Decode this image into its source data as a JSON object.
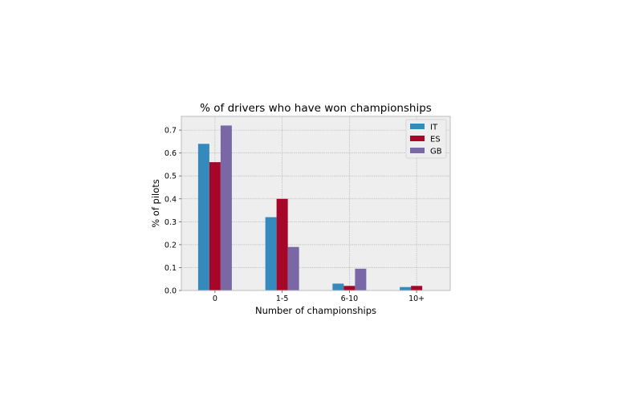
{
  "chart_data": {
    "type": "bar",
    "title": "% of drivers who have won championships",
    "xlabel": "Number of championships",
    "ylabel": "% of pilots",
    "categories": [
      "0",
      "1-5",
      "6-10",
      "10+"
    ],
    "series": [
      {
        "name": "IT",
        "color": "#348abd",
        "values": [
          0.64,
          0.32,
          0.03,
          0.015
        ]
      },
      {
        "name": "ES",
        "color": "#a60628",
        "values": [
          0.56,
          0.4,
          0.02,
          0.02
        ]
      },
      {
        "name": "GB",
        "color": "#7a68a6",
        "values": [
          0.72,
          0.19,
          0.095,
          0.0
        ]
      }
    ],
    "ylim": [
      0,
      0.76
    ],
    "yticks": [
      0.0,
      0.1,
      0.2,
      0.3,
      0.4,
      0.5,
      0.6,
      0.7
    ],
    "ytick_labels": [
      "0.0",
      "0.1",
      "0.2",
      "0.3",
      "0.4",
      "0.5",
      "0.6",
      "0.7"
    ],
    "grid": true,
    "legend_position": "top-right",
    "background": "#eeeeee",
    "grid_color": "#b0b0b0"
  }
}
